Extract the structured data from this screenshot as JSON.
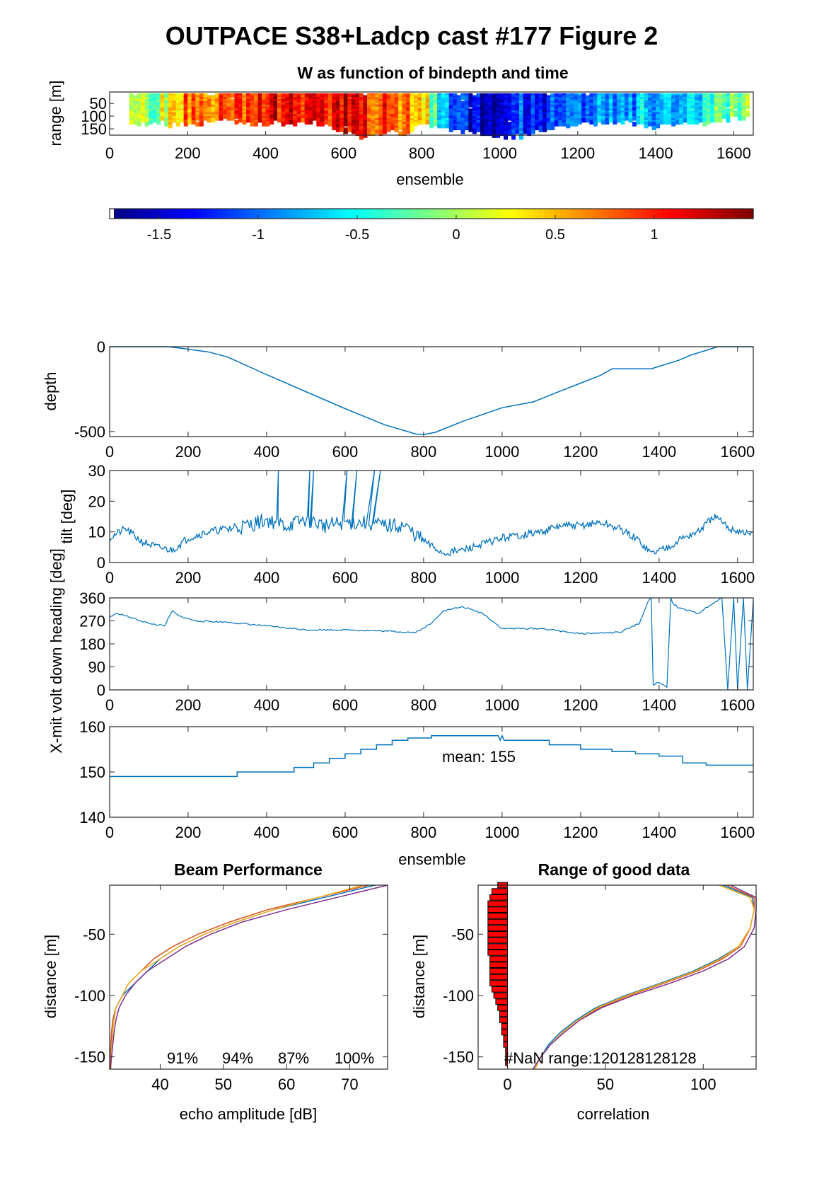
{
  "figure_title": "OUTPACE S38+Ladcp cast #177 Figure 2",
  "colors": {
    "line": "#0072bd",
    "beams": [
      "#0072bd",
      "#d95319",
      "#edb120",
      "#7e2f8e"
    ],
    "bar_fill": "#ff0000"
  },
  "chart_data": [
    {
      "type": "heatmap",
      "title": "W as function of bindepth and time",
      "xlabel": "ensemble",
      "ylabel": "range [m]",
      "xlim": [
        0,
        1650
      ],
      "ylim": [
        175,
        5
      ],
      "xticks": [
        "0",
        "200",
        "400",
        "600",
        "800",
        "1000",
        "1200",
        "1400",
        "1600"
      ],
      "yticks": [
        "50",
        "100",
        "150"
      ],
      "colormap": "jet",
      "w_profile": {
        "x": [
          0,
          50,
          100,
          150,
          200,
          250,
          300,
          350,
          400,
          450,
          500,
          550,
          600,
          650,
          700,
          750,
          800,
          850,
          900,
          950,
          1000,
          1050,
          1100,
          1150,
          1200,
          1250,
          1300,
          1350,
          1400,
          1450,
          1500,
          1550,
          1600,
          1650
        ],
        "w": [
          0.6,
          0.1,
          -0.2,
          0.3,
          0.8,
          0.9,
          0.7,
          1.0,
          1.2,
          1.0,
          0.9,
          1.1,
          1.2,
          1.0,
          0.9,
          0.8,
          0.5,
          -0.9,
          -1.3,
          -1.5,
          -1.4,
          -1.2,
          -1.3,
          -1.1,
          -1.2,
          -1.0,
          -0.9,
          -0.8,
          -0.7,
          -0.9,
          -0.6,
          -0.3,
          -0.2,
          0.2
        ],
        "good_range_m": [
          110,
          120,
          115,
          120,
          120,
          110,
          100,
          120,
          115,
          120,
          110,
          120,
          150,
          170,
          160,
          150,
          120,
          130,
          150,
          160,
          170,
          165,
          140,
          130,
          120,
          120,
          110,
          120,
          130,
          120,
          115,
          110,
          100,
          100
        ]
      }
    },
    {
      "type": "colorbar",
      "clim": [
        -1.75,
        1.5
      ],
      "ticks": [
        -1.5,
        -1,
        -0.5,
        0,
        0.5,
        1
      ],
      "tick_labels": [
        "-1.5",
        "-1",
        "-0.5",
        "0",
        "0.5",
        "1"
      ]
    },
    {
      "type": "line",
      "ylabel": "depth",
      "xlim": [
        0,
        1640
      ],
      "ylim": [
        -530,
        0
      ],
      "xticks": [
        "0",
        "200",
        "400",
        "600",
        "800",
        "1000",
        "1200",
        "1400",
        "1600"
      ],
      "yticks": [
        "0",
        "-500"
      ],
      "x": [
        0,
        150,
        250,
        300,
        400,
        500,
        600,
        700,
        780,
        800,
        830,
        900,
        1000,
        1080,
        1150,
        1200,
        1250,
        1280,
        1380,
        1450,
        1480,
        1550,
        1640
      ],
      "y": [
        0,
        0,
        -30,
        -60,
        -165,
        -265,
        -365,
        -460,
        -515,
        -518,
        -505,
        -440,
        -360,
        -325,
        -260,
        -215,
        -170,
        -130,
        -130,
        -80,
        -50,
        0,
        0
      ]
    },
    {
      "type": "line",
      "ylabel": "tilt [deg]",
      "xlim": [
        0,
        1640
      ],
      "ylim": [
        0,
        30
      ],
      "xticks": [
        "0",
        "200",
        "400",
        "600",
        "800",
        "1000",
        "1200",
        "1400",
        "1600"
      ],
      "yticks": [
        "0",
        "10",
        "20",
        "30"
      ],
      "x": [
        0,
        40,
        80,
        120,
        160,
        200,
        250,
        300,
        350,
        400,
        450,
        500,
        550,
        600,
        650,
        700,
        750,
        800,
        850,
        900,
        950,
        1000,
        1050,
        1100,
        1150,
        1200,
        1250,
        1300,
        1350,
        1380,
        1420,
        1460,
        1500,
        1540,
        1580,
        1640
      ],
      "y": [
        8,
        11,
        7,
        5,
        4,
        8,
        10,
        11,
        12,
        14,
        12,
        14,
        12,
        13,
        13,
        12,
        12,
        7,
        3,
        4,
        6,
        8,
        9,
        10,
        12,
        12,
        13,
        11,
        7,
        3,
        5,
        8,
        10,
        15,
        11,
        9
      ],
      "spikes": {
        "x": [
          430,
          510,
          520,
          605,
          630,
          675,
          690
        ],
        "y": [
          30,
          30,
          30,
          30,
          30,
          30,
          30
        ]
      }
    },
    {
      "type": "line",
      "ylabel": "X-mit volt down heading [deg]",
      "xlim": [
        0,
        1640
      ],
      "ylim": [
        0,
        360
      ],
      "xticks": [
        "0",
        "200",
        "400",
        "600",
        "800",
        "1000",
        "1200",
        "1400",
        "1600"
      ],
      "yticks": [
        "0",
        "90",
        "180",
        "270",
        "360"
      ],
      "x": [
        0,
        20,
        60,
        100,
        140,
        160,
        175,
        220,
        300,
        400,
        500,
        600,
        700,
        780,
        820,
        850,
        900,
        950,
        1000,
        1100,
        1200,
        1300,
        1350,
        1370,
        1380,
        1385,
        1400,
        1420,
        1430,
        1435,
        1450,
        1500,
        1540,
        1560,
        1575,
        1590,
        1600,
        1615,
        1625,
        1640
      ],
      "y": [
        285,
        300,
        280,
        260,
        250,
        310,
        290,
        270,
        265,
        250,
        235,
        235,
        230,
        225,
        260,
        310,
        325,
        300,
        240,
        240,
        220,
        225,
        260,
        340,
        360,
        20,
        30,
        10,
        360,
        340,
        320,
        300,
        340,
        360,
        0,
        360,
        0,
        360,
        0,
        350
      ]
    },
    {
      "type": "line",
      "xlabel": "ensemble",
      "xlim": [
        0,
        1640
      ],
      "ylim": [
        140,
        160
      ],
      "xticks": [
        "0",
        "200",
        "400",
        "600",
        "800",
        "1000",
        "1200",
        "1400",
        "1600"
      ],
      "yticks": [
        "140",
        "150",
        "160"
      ],
      "annotation": "mean: 155",
      "x": [
        0,
        325,
        325,
        470,
        470,
        520,
        520,
        560,
        560,
        600,
        600,
        640,
        640,
        680,
        680,
        720,
        720,
        760,
        760,
        820,
        820,
        990,
        995,
        1000,
        1005,
        1120,
        1120,
        1200,
        1200,
        1280,
        1280,
        1340,
        1340,
        1400,
        1400,
        1460,
        1460,
        1520,
        1520,
        1640
      ],
      "y": [
        149,
        149,
        150,
        150,
        151,
        151,
        152,
        152,
        153,
        153,
        154,
        154,
        155,
        155,
        156,
        156,
        157,
        157,
        157.5,
        157.5,
        158,
        158,
        157,
        158,
        157,
        157,
        156,
        156,
        155,
        155,
        154.5,
        154.5,
        154,
        154,
        153.5,
        153.5,
        152,
        152,
        151.5,
        151.5
      ]
    },
    {
      "type": "line",
      "title": "Beam Performance",
      "xlabel": "echo amplitude [dB]",
      "ylabel": "distance [m]",
      "xlim": [
        32,
        76
      ],
      "ylim": [
        -160,
        -10
      ],
      "xticks": [
        "40",
        "50",
        "60",
        "70"
      ],
      "yticks": [
        "-50",
        "-100",
        "-150"
      ],
      "beam_percent_labels": [
        "91%",
        "94%",
        "87%",
        "100%"
      ],
      "series": [
        {
          "y": [
            -10,
            -20,
            -30,
            -40,
            -50,
            -60,
            -70,
            -80,
            -90,
            -100,
            -110,
            -120,
            -130,
            -140,
            -150,
            -160
          ],
          "x": [
            74,
            66,
            58,
            52,
            47,
            43,
            40,
            38,
            36,
            34,
            33,
            32.5,
            32.3,
            32.2,
            32.1,
            32
          ]
        },
        {
          "y": [
            -10,
            -20,
            -30,
            -40,
            -50,
            -60,
            -70,
            -80,
            -90,
            -100,
            -110,
            -120,
            -130,
            -140,
            -150,
            -160
          ],
          "x": [
            73,
            65,
            57,
            51,
            46,
            42,
            39,
            37,
            35,
            34,
            33,
            32.5,
            32.3,
            32.2,
            32.1,
            32
          ]
        },
        {
          "y": [
            -10,
            -20,
            -30,
            -40,
            -50,
            -60,
            -70,
            -80,
            -90,
            -100,
            -110,
            -120,
            -130,
            -140,
            -150,
            -160
          ],
          "x": [
            72,
            65,
            58,
            52,
            47,
            43,
            40,
            37,
            35,
            34,
            33,
            32.7,
            32.5,
            32.4,
            32.3,
            32.2
          ]
        },
        {
          "y": [
            -10,
            -20,
            -30,
            -40,
            -50,
            -60,
            -70,
            -80,
            -90,
            -100,
            -110,
            -120,
            -130,
            -140,
            -150,
            -160
          ],
          "x": [
            76,
            68,
            60,
            53,
            48,
            44,
            41,
            38,
            36,
            34.5,
            33.5,
            33,
            32.7,
            32.5,
            32.3,
            32.1
          ]
        }
      ]
    },
    {
      "type": "line",
      "title": "Range of good data",
      "xlabel": "correlation",
      "ylabel": "distance [m]",
      "xlim": [
        -15,
        127
      ],
      "ylim": [
        -160,
        -10
      ],
      "xticks": [
        "0",
        "50",
        "100"
      ],
      "yticks": [
        "-50",
        "-100",
        "-150"
      ],
      "annotation": "#NaN range:120128128128",
      "nan_bars": {
        "y": [
          -10,
          -15,
          -20,
          -25,
          -30,
          -35,
          -40,
          -45,
          -50,
          -55,
          -60,
          -65,
          -70,
          -75,
          -80,
          -85,
          -90,
          -95,
          -100,
          -105,
          -110,
          -115,
          -120,
          -125,
          -130,
          -135,
          -140,
          -145,
          -150,
          -155
        ],
        "value": [
          5,
          8,
          9,
          10,
          10,
          10,
          10,
          10,
          10,
          10,
          10,
          10,
          9,
          9,
          9,
          9,
          9,
          8,
          7,
          6,
          5,
          4,
          4,
          3,
          3,
          2,
          2,
          1,
          1,
          1
        ]
      },
      "series": [
        {
          "y": [
            -10,
            -20,
            -30,
            -45,
            -60,
            -70,
            -80,
            -90,
            -100,
            -110,
            -120,
            -130,
            -140,
            -150,
            -160
          ],
          "x": [
            110,
            125,
            126,
            124,
            118,
            108,
            95,
            78,
            60,
            45,
            35,
            27,
            21,
            17,
            13
          ]
        },
        {
          "y": [
            -10,
            -20,
            -30,
            -45,
            -60,
            -70,
            -80,
            -90,
            -100,
            -110,
            -120,
            -130,
            -140,
            -150,
            -160
          ],
          "x": [
            112,
            126,
            126,
            124,
            119,
            110,
            97,
            80,
            62,
            47,
            36,
            28,
            22,
            17,
            14
          ]
        },
        {
          "y": [
            -10,
            -20,
            -30,
            -45,
            -60,
            -70,
            -80,
            -90,
            -100,
            -110,
            -120,
            -130,
            -140,
            -150,
            -160
          ],
          "x": [
            108,
            124,
            126,
            124,
            118,
            109,
            96,
            79,
            61,
            46,
            36,
            28,
            22,
            17,
            14
          ]
        },
        {
          "y": [
            -10,
            -20,
            -30,
            -45,
            -60,
            -70,
            -80,
            -90,
            -100,
            -110,
            -120,
            -130,
            -140,
            -150,
            -160
          ],
          "x": [
            114,
            127,
            127,
            126,
            121,
            113,
            100,
            83,
            64,
            48,
            37,
            29,
            22,
            17,
            13
          ]
        }
      ]
    }
  ]
}
